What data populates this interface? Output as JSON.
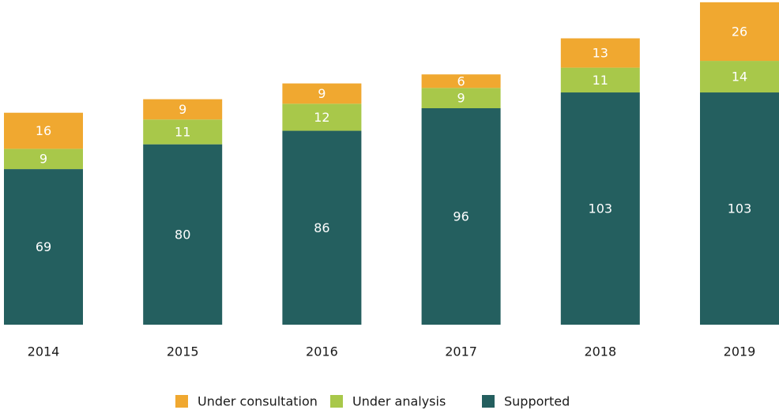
{
  "chart_data": {
    "type": "stacked_bar",
    "categories": [
      "2014",
      "2015",
      "2016",
      "2017",
      "2018",
      "2019"
    ],
    "series": [
      {
        "name": "Supported",
        "color": "#245f5f",
        "values": [
          69,
          80,
          86,
          96,
          103,
          103
        ]
      },
      {
        "name": "Under analysis",
        "color": "#a8c84a",
        "values": [
          9,
          11,
          12,
          9,
          11,
          14
        ]
      },
      {
        "name": "Under consultation",
        "color": "#f0a830",
        "values": [
          16,
          9,
          9,
          6,
          13,
          26
        ]
      }
    ],
    "ylim": [
      0,
      144
    ]
  }
}
